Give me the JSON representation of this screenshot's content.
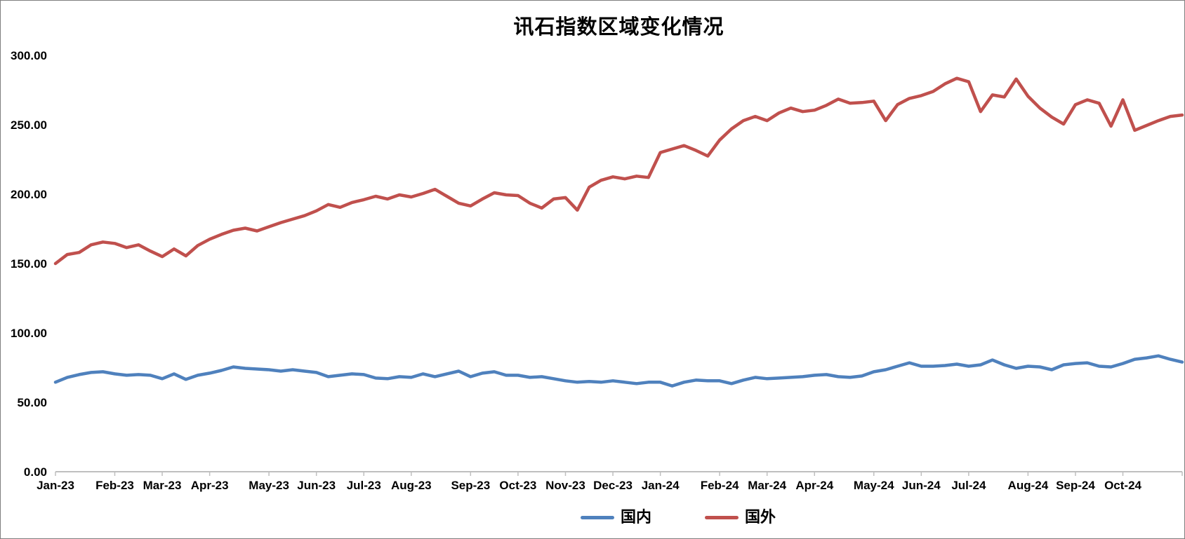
{
  "window": {
    "background": "#FFFFFF",
    "border_color": "#7F7F7F"
  },
  "chart_data": {
    "type": "line",
    "title": "讯石指数区域变化情况",
    "xlabel": "",
    "ylabel": "",
    "grid": false,
    "legend_position": "bottom-center",
    "axis_color": "#BFBFBF",
    "text_color": "#000000",
    "y_axis": {
      "min": 0,
      "max": 300,
      "step": 50,
      "labels": [
        "0.00",
        "50.00",
        "100.00",
        "150.00",
        "200.00",
        "250.00",
        "300.00"
      ]
    },
    "categories": [
      "Jan-23",
      "Feb-23",
      "Mar-23",
      "Apr-23",
      "May-23",
      "Jun-23",
      "Jul-23",
      "Aug-23",
      "Sep-23",
      "Oct-23",
      "Nov-23",
      "Dec-23",
      "Jan-24",
      "Feb-24",
      "Mar-24",
      "Apr-24",
      "May-24",
      "Jun-24",
      "Jul-24",
      "Aug-24",
      "Sep-24",
      "Oct-24"
    ],
    "points_per_month": [
      5,
      4,
      4,
      5,
      4,
      4,
      4,
      5,
      4,
      4,
      4,
      4,
      5,
      4,
      4,
      5,
      4,
      4,
      5,
      4,
      4,
      4
    ],
    "trailing_points": 2,
    "series": [
      {
        "name": "国内",
        "color": "#4F81BD",
        "values": [
          64.5,
          68,
          70,
          71.5,
          72,
          70.5,
          69.5,
          70,
          69.5,
          67,
          70.5,
          66.5,
          69.5,
          71,
          73,
          75.5,
          74.5,
          74,
          73.5,
          72.5,
          73.5,
          72.5,
          71.5,
          68.5,
          69.5,
          70.5,
          70,
          67.5,
          67,
          68.5,
          68,
          70.5,
          68.5,
          70.5,
          72.5,
          68.5,
          71,
          72,
          69.5,
          69.5,
          68,
          68.5,
          67,
          65.5,
          64.5,
          65,
          64.5,
          65.5,
          64.5,
          63.5,
          64.5,
          64.5,
          61.8,
          64.5,
          66,
          65.5,
          65.5,
          63.5,
          66,
          68,
          67,
          67.5,
          68,
          68.5,
          69.5,
          70,
          68.5,
          68,
          69,
          72,
          73.5,
          76,
          78.5,
          76,
          76,
          76.5,
          77.5,
          76,
          77,
          80.5,
          77,
          74.5,
          76,
          75.5,
          73.5,
          77,
          78,
          78.5,
          76,
          75.5,
          78,
          81,
          82,
          83.5,
          81,
          79
        ]
      },
      {
        "name": "国外",
        "color": "#C0504D",
        "values": [
          150,
          156.5,
          158,
          163.5,
          165.5,
          164.5,
          161.5,
          163.5,
          159,
          155,
          160.5,
          155.5,
          163,
          167.5,
          171,
          174,
          175.5,
          173.5,
          176.5,
          179.5,
          182,
          184.5,
          188,
          192.5,
          190.5,
          194,
          196,
          198.5,
          196.5,
          199.5,
          198,
          200.5,
          203.5,
          198.5,
          193.5,
          191.5,
          196.5,
          201,
          199.5,
          199,
          193.5,
          190,
          196.5,
          197.5,
          188.5,
          205,
          210,
          212.5,
          211,
          213,
          212,
          230,
          232.5,
          235,
          231.5,
          227.5,
          239,
          247,
          253,
          256,
          253,
          258.5,
          262,
          259.5,
          260.5,
          264,
          268.5,
          265.5,
          266,
          267,
          253,
          264.5,
          269,
          271,
          274,
          279.5,
          283.5,
          281,
          259.5,
          271.5,
          270,
          283,
          270.5,
          262,
          255.5,
          250.5,
          264.5,
          268,
          265.5,
          249,
          268,
          246,
          249.5,
          253,
          256,
          257
        ]
      }
    ]
  }
}
